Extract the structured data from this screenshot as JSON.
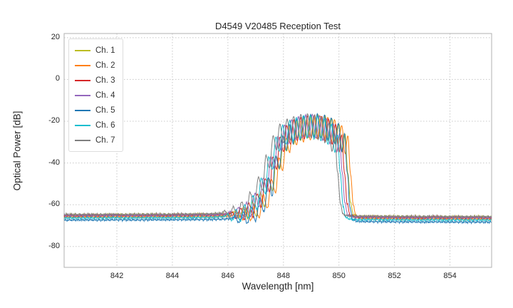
{
  "page": {
    "background": "#ffffff"
  },
  "chart_data": {
    "type": "line",
    "title": "D4549 V20485 Reception Test",
    "xlabel": "Wavelength [nm]",
    "ylabel": "Optical Power [dB]",
    "xlim": [
      840.1,
      855.5
    ],
    "ylim": [
      -90,
      22
    ],
    "x_ticks": [
      842,
      844,
      846,
      848,
      850,
      852,
      854
    ],
    "y_ticks": [
      20,
      0,
      -20,
      -40,
      -60,
      -80
    ],
    "grid": true,
    "grid_color": "#c8c8c8",
    "axes_border_color": "#b0b0b0",
    "legend_position": "upper-left",
    "profile": [
      [
        840.0,
        -65.6
      ],
      [
        840.5,
        -65.5
      ],
      [
        841.0,
        -65.5
      ],
      [
        841.5,
        -65.5
      ],
      [
        842.0,
        -65.4
      ],
      [
        842.5,
        -65.5
      ],
      [
        843.0,
        -65.4
      ],
      [
        843.5,
        -65.4
      ],
      [
        844.0,
        -65.4
      ],
      [
        844.5,
        -65.3
      ],
      [
        845.0,
        -65.3
      ],
      [
        845.5,
        -65.2
      ],
      [
        846.0,
        -64.9
      ],
      [
        846.15,
        -63.8
      ],
      [
        846.3,
        -66.8
      ],
      [
        846.45,
        -61.8
      ],
      [
        846.6,
        -67.2
      ],
      [
        846.75,
        -59.5
      ],
      [
        846.9,
        -66.0
      ],
      [
        847.05,
        -55.0
      ],
      [
        847.2,
        -61.5
      ],
      [
        847.35,
        -47.5
      ],
      [
        847.5,
        -54.0
      ],
      [
        847.62,
        -37.0
      ],
      [
        847.75,
        -43.0
      ],
      [
        847.88,
        -27.5
      ],
      [
        848.0,
        -34.5
      ],
      [
        848.12,
        -22.0
      ],
      [
        848.25,
        -31.0
      ],
      [
        848.38,
        -19.5
      ],
      [
        848.5,
        -29.5
      ],
      [
        848.62,
        -18.2
      ],
      [
        848.75,
        -28.5
      ],
      [
        848.88,
        -17.3
      ],
      [
        849.0,
        -28.0
      ],
      [
        849.12,
        -17.0
      ],
      [
        849.25,
        -28.5
      ],
      [
        849.38,
        -17.6
      ],
      [
        849.5,
        -29.5
      ],
      [
        849.62,
        -18.8
      ],
      [
        849.75,
        -31.0
      ],
      [
        849.88,
        -21.5
      ],
      [
        850.0,
        -35.0
      ],
      [
        850.1,
        -26.5
      ],
      [
        850.2,
        -45.0
      ],
      [
        850.3,
        -60.0
      ],
      [
        850.4,
        -65.5
      ],
      [
        850.6,
        -66.2
      ],
      [
        851.0,
        -66.3
      ],
      [
        851.5,
        -66.3
      ],
      [
        852.0,
        -66.4
      ],
      [
        852.5,
        -66.4
      ],
      [
        853.0,
        -66.5
      ],
      [
        853.5,
        -66.4
      ],
      [
        854.0,
        -66.5
      ],
      [
        854.5,
        -66.5
      ],
      [
        855.0,
        -66.5
      ],
      [
        855.5,
        -66.5
      ]
    ],
    "series": [
      {
        "name": "Ch. 1",
        "color": "#bcbd22",
        "dx": 0.12,
        "dy": 0.2,
        "floor_dy": 0.5
      },
      {
        "name": "Ch. 2",
        "color": "#ff7f0e",
        "dx": 0.22,
        "dy": -0.5,
        "floor_dy": 0.2
      },
      {
        "name": "Ch. 3",
        "color": "#d62728",
        "dx": 0.0,
        "dy": 0.0,
        "floor_dy": 0.3
      },
      {
        "name": "Ch. 4",
        "color": "#9467bd",
        "dx": -0.08,
        "dy": 0.3,
        "floor_dy": 0.1
      },
      {
        "name": "Ch. 5",
        "color": "#1f77b4",
        "dx": 0.1,
        "dy": 0.5,
        "floor_dy": -2.3
      },
      {
        "name": "Ch. 6",
        "color": "#17becf",
        "dx": -0.15,
        "dy": 0.0,
        "floor_dy": -0.8
      },
      {
        "name": "Ch. 7",
        "color": "#7f7f7f",
        "dx": -0.25,
        "dy": 0.6,
        "floor_dy": 0.2
      }
    ]
  }
}
